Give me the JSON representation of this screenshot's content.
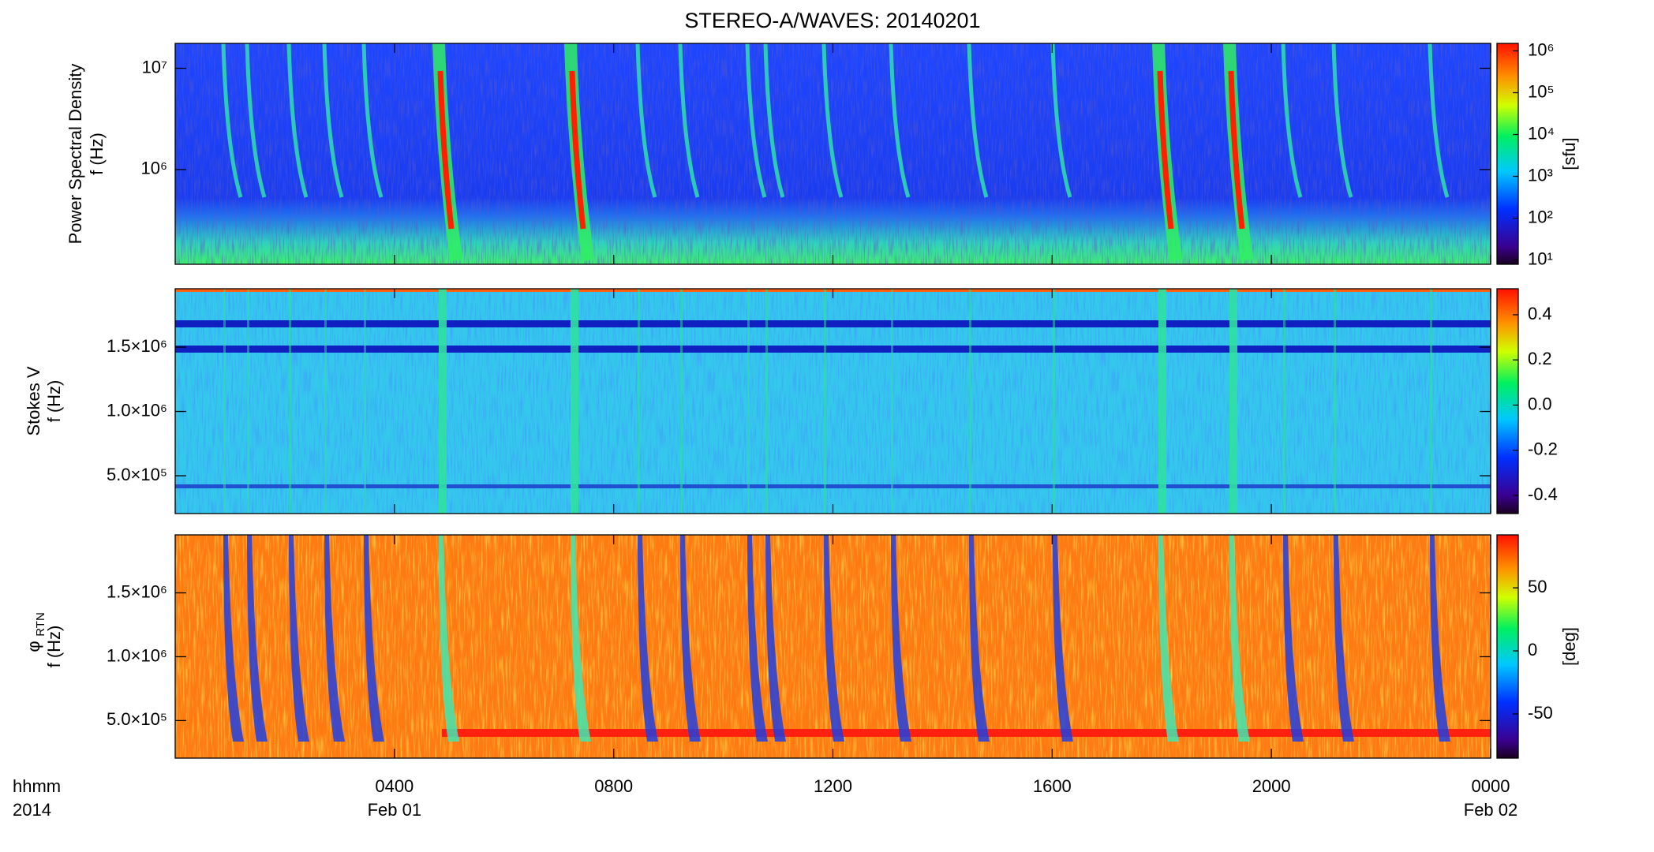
{
  "title": "STEREO-A/WAVES: 20140201",
  "x_axis": {
    "label": [
      "hhmm",
      "2014"
    ],
    "xlim": [
      0,
      24
    ],
    "xticks": [
      {
        "value": 4,
        "label": "0400"
      },
      {
        "value": 8,
        "label": "0800"
      },
      {
        "value": 12,
        "label": "1200"
      },
      {
        "value": 16,
        "label": "1600"
      },
      {
        "value": 20,
        "label": "2000"
      },
      {
        "value": 24,
        "label": "0000"
      }
    ],
    "date_labels": [
      {
        "value": 4,
        "label": "Feb 01"
      },
      {
        "value": 24,
        "label": "Feb 02"
      }
    ]
  },
  "chart_data": [
    {
      "type": "heatmap",
      "y_label": [
        "Power Spectral Density",
        "f (Hz)"
      ],
      "log_y": true,
      "ylim": [
        116000,
        17600000
      ],
      "yticks": [
        {
          "value": 1000000,
          "label": "10⁶"
        },
        {
          "value": 10000000,
          "label": "10⁷"
        }
      ],
      "colorbar": {
        "label": "[sfu]",
        "log": true,
        "lim": [
          7.9,
          1510000
        ],
        "ticks": [
          {
            "value": 10,
            "label": "10¹"
          },
          {
            "value": 100,
            "label": "10²"
          },
          {
            "value": 1000,
            "label": "10³"
          },
          {
            "value": 10000,
            "label": "10⁴"
          },
          {
            "value": 100000,
            "label": "10⁵"
          },
          {
            "value": 1000000,
            "label": "10⁶"
          }
        ]
      }
    },
    {
      "type": "heatmap",
      "y_label": [
        "Stokes V",
        "f (Hz)"
      ],
      "log_y": false,
      "ylim": [
        206000,
        1954000
      ],
      "yticks": [
        {
          "value": 500000,
          "label": "5.0×10⁵"
        },
        {
          "value": 1000000,
          "label": "1.0×10⁶"
        },
        {
          "value": 1500000,
          "label": "1.5×10⁶"
        }
      ],
      "colorbar": {
        "log": false,
        "lim": [
          -0.48,
          0.515
        ],
        "ticks": [
          -0.4,
          -0.2,
          {
            "value": 0,
            "label": "0.0"
          },
          0.2,
          0.4
        ]
      }
    },
    {
      "type": "heatmap",
      "y_label": [
        "φ",
        "f (Hz)"
      ],
      "y_label_subscript": "RTN",
      "log_y": false,
      "ylim": [
        206000,
        1954000
      ],
      "yticks": [
        {
          "value": 500000,
          "label": "5.0×10⁵"
        },
        {
          "value": 1000000,
          "label": "1.0×10⁶"
        },
        {
          "value": 1500000,
          "label": "1.5×10⁶"
        }
      ],
      "colorbar": {
        "label": "[deg]",
        "log": false,
        "lim": [
          -85,
          92
        ],
        "ticks": [
          -50,
          0,
          50
        ]
      }
    }
  ]
}
